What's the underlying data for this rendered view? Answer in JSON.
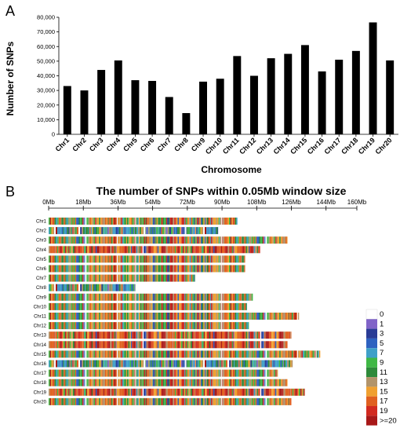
{
  "panel_a": {
    "letter": "A"
  },
  "panel_b": {
    "letter": "B"
  },
  "chart_data": [
    {
      "type": "bar",
      "title": "",
      "xlabel": "Chromosome",
      "ylabel": "Number of SNPs",
      "ylim": [
        0,
        80000
      ],
      "yticks": [
        "0",
        "10,000",
        "20,000",
        "30,000",
        "40,000",
        "50,000",
        "60,000",
        "70,000",
        "80,000"
      ],
      "categories": [
        "Chr1",
        "Chr2",
        "Chr3",
        "Chr4",
        "Chr5",
        "Chr6",
        "Chr7",
        "Chr8",
        "Chr9",
        "Chr10",
        "Chr11",
        "Chr12",
        "Chr13",
        "Chr14",
        "Chr15",
        "Chr16",
        "Chr17",
        "Chr18",
        "Chr19",
        "Chr20"
      ],
      "values": [
        33000,
        30000,
        44000,
        50500,
        37000,
        36500,
        25500,
        14500,
        36000,
        38000,
        53500,
        40000,
        52000,
        55000,
        61000,
        43000,
        51000,
        57000,
        76500,
        50500
      ],
      "bar_color": "#000000"
    },
    {
      "type": "heatmap",
      "title": "The number of SNPs within 0.05Mb window size",
      "xaxis_unit": "Mb",
      "xlim": [
        0,
        160
      ],
      "xticks": [
        "0Mb",
        "18Mb",
        "36Mb",
        "54Mb",
        "72Mb",
        "90Mb",
        "108Mb",
        "126Mb",
        "144Mb",
        "160Mb"
      ],
      "xtick_values": [
        0,
        18,
        36,
        54,
        72,
        90,
        108,
        126,
        144,
        160
      ],
      "chromosomes": [
        "Chr1",
        "Chr2",
        "Chr3",
        "Chr4",
        "Chr5",
        "Chr6",
        "Chr7",
        "Chr8",
        "Chr9",
        "Chr10",
        "Chr11",
        "Chr12",
        "Chr13",
        "Chr14",
        "Chr15",
        "Chr16",
        "Chr17",
        "Chr18",
        "Chr19",
        "Chr20"
      ],
      "lengths_mb": [
        98,
        88,
        124,
        110,
        102,
        102,
        76,
        45,
        106,
        103,
        130,
        104,
        126,
        124,
        141,
        127,
        119,
        124,
        133,
        126
      ],
      "legend": {
        "labels": [
          "0",
          "1",
          "3",
          "5",
          "7",
          "9",
          "11",
          "13",
          "15",
          "17",
          "19",
          ">=20"
        ],
        "colors": [
          "#ffffff",
          "#8064c8",
          "#2a3c96",
          "#2e62c0",
          "#3fa0c8",
          "#3fb845",
          "#2e8a3a",
          "#b2946a",
          "#f0a030",
          "#e06020",
          "#d22a20",
          "#a81818"
        ]
      }
    }
  ]
}
